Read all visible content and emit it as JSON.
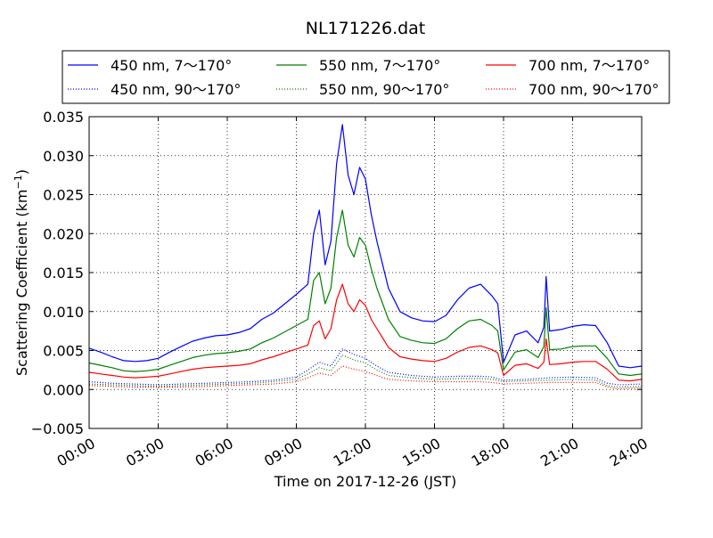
{
  "chart_data": {
    "type": "line",
    "title": "NL171226.dat",
    "xlabel": "Time on 2017-12-26 (JST)",
    "ylabel_main": "Scattering Coefficient (km",
    "ylabel_sup": "−1",
    "ylabel_close": ")",
    "x_unit": "hours",
    "xlim": [
      0,
      24
    ],
    "ylim": [
      -0.005,
      0.035
    ],
    "x_ticks": [
      {
        "value": 0,
        "label": "00:00"
      },
      {
        "value": 3,
        "label": "03:00"
      },
      {
        "value": 6,
        "label": "06:00"
      },
      {
        "value": 9,
        "label": "09:00"
      },
      {
        "value": 12,
        "label": "12:00"
      },
      {
        "value": 15,
        "label": "15:00"
      },
      {
        "value": 18,
        "label": "18:00"
      },
      {
        "value": 21,
        "label": "21:00"
      },
      {
        "value": 24,
        "label": "24:00"
      }
    ],
    "y_ticks": [
      {
        "value": -0.005,
        "label": "−0.005"
      },
      {
        "value": 0.0,
        "label": "0.000"
      },
      {
        "value": 0.005,
        "label": "0.005"
      },
      {
        "value": 0.01,
        "label": "0.010"
      },
      {
        "value": 0.015,
        "label": "0.015"
      },
      {
        "value": 0.02,
        "label": "0.020"
      },
      {
        "value": 0.025,
        "label": "0.025"
      },
      {
        "value": 0.03,
        "label": "0.030"
      },
      {
        "value": 0.035,
        "label": "0.035"
      }
    ],
    "grid": true,
    "legend_position": "top",
    "series": [
      {
        "name": "450 nm, 7～170°",
        "color": "#0000ff",
        "style": "solid",
        "x": [
          0,
          0.5,
          1,
          1.5,
          2,
          2.5,
          3,
          3.5,
          4,
          4.5,
          5,
          5.5,
          6,
          6.5,
          7,
          7.5,
          8,
          8.5,
          9,
          9.5,
          9.75,
          10,
          10.25,
          10.5,
          10.75,
          11,
          11.25,
          11.5,
          11.75,
          12,
          12.25,
          12.5,
          12.75,
          13,
          13.5,
          14,
          14.5,
          15,
          15.5,
          16,
          16.5,
          17,
          17.5,
          17.75,
          18,
          18.5,
          19,
          19.5,
          19.75,
          19.85,
          20,
          20.5,
          21,
          21.5,
          22,
          22.5,
          23,
          23.5,
          24
        ],
        "y": [
          0.0053,
          0.0048,
          0.0042,
          0.0037,
          0.0036,
          0.0037,
          0.004,
          0.0048,
          0.0055,
          0.0062,
          0.0066,
          0.0069,
          0.007,
          0.0073,
          0.0078,
          0.009,
          0.0098,
          0.011,
          0.0122,
          0.0135,
          0.02,
          0.023,
          0.016,
          0.019,
          0.029,
          0.034,
          0.0275,
          0.025,
          0.0285,
          0.027,
          0.0225,
          0.019,
          0.016,
          0.013,
          0.01,
          0.0092,
          0.0088,
          0.0087,
          0.0095,
          0.0115,
          0.013,
          0.0135,
          0.012,
          0.011,
          0.0035,
          0.007,
          0.0075,
          0.006,
          0.008,
          0.0145,
          0.0075,
          0.0077,
          0.0081,
          0.0083,
          0.0082,
          0.006,
          0.003,
          0.0028,
          0.003
        ]
      },
      {
        "name": "450 nm, 90～170°",
        "color": "#0000ff",
        "style": "dotted",
        "x": [
          0,
          1,
          2,
          3,
          4,
          5,
          6,
          7,
          8,
          9,
          9.5,
          10,
          10.5,
          11,
          11.5,
          12,
          12.5,
          13,
          14,
          15,
          16,
          17,
          17.5,
          18,
          19,
          20,
          21,
          22,
          22.5,
          23,
          24
        ],
        "y": [
          0.001,
          0.0008,
          0.0007,
          0.0006,
          0.0007,
          0.0008,
          0.0009,
          0.001,
          0.0012,
          0.0016,
          0.0025,
          0.0035,
          0.003,
          0.0052,
          0.0045,
          0.004,
          0.003,
          0.0022,
          0.0018,
          0.0016,
          0.0017,
          0.0017,
          0.0016,
          0.0012,
          0.0013,
          0.0015,
          0.0016,
          0.0015,
          0.0008,
          0.0006,
          0.0007
        ]
      },
      {
        "name": "550 nm, 7～170°",
        "color": "#008000",
        "style": "solid",
        "x": [
          0,
          0.5,
          1,
          1.5,
          2,
          2.5,
          3,
          3.5,
          4,
          4.5,
          5,
          5.5,
          6,
          6.5,
          7,
          7.5,
          8,
          8.5,
          9,
          9.5,
          9.75,
          10,
          10.25,
          10.5,
          10.75,
          11,
          11.25,
          11.5,
          11.75,
          12,
          12.25,
          12.5,
          12.75,
          13,
          13.5,
          14,
          14.5,
          15,
          15.5,
          16,
          16.5,
          17,
          17.5,
          17.75,
          18,
          18.5,
          19,
          19.5,
          19.75,
          19.85,
          20,
          20.5,
          21,
          21.5,
          22,
          22.5,
          23,
          23.5,
          24
        ],
        "y": [
          0.0034,
          0.0031,
          0.0028,
          0.0024,
          0.0023,
          0.0024,
          0.0026,
          0.0031,
          0.0036,
          0.0041,
          0.0044,
          0.0046,
          0.0047,
          0.0049,
          0.0052,
          0.006,
          0.0066,
          0.0074,
          0.0082,
          0.009,
          0.014,
          0.015,
          0.011,
          0.013,
          0.0195,
          0.023,
          0.0185,
          0.017,
          0.0195,
          0.0185,
          0.0155,
          0.013,
          0.011,
          0.009,
          0.0068,
          0.0063,
          0.006,
          0.0059,
          0.0065,
          0.0078,
          0.0088,
          0.009,
          0.0082,
          0.0075,
          0.0025,
          0.0048,
          0.0051,
          0.0041,
          0.0055,
          0.0105,
          0.0051,
          0.0052,
          0.0055,
          0.0056,
          0.0056,
          0.004,
          0.002,
          0.0018,
          0.002
        ]
      },
      {
        "name": "550 nm, 90～170°",
        "color": "#008000",
        "style": "dotted",
        "x": [
          0,
          1,
          2,
          3,
          4,
          5,
          6,
          7,
          8,
          9,
          9.5,
          10,
          10.5,
          11,
          11.5,
          12,
          12.5,
          13,
          14,
          15,
          16,
          17,
          17.5,
          18,
          19,
          20,
          21,
          22,
          22.5,
          23,
          24
        ],
        "y": [
          0.0007,
          0.0006,
          0.0005,
          0.0004,
          0.0005,
          0.0006,
          0.0007,
          0.0008,
          0.001,
          0.0013,
          0.002,
          0.0028,
          0.0024,
          0.0044,
          0.0038,
          0.0034,
          0.0025,
          0.0018,
          0.0015,
          0.0013,
          0.0014,
          0.0014,
          0.0013,
          0.001,
          0.0011,
          0.0012,
          0.0013,
          0.0012,
          0.0005,
          0.0003,
          0.0004
        ]
      },
      {
        "name": "700 nm, 7～170°",
        "color": "#ff0000",
        "style": "solid",
        "x": [
          0,
          0.5,
          1,
          1.5,
          2,
          2.5,
          3,
          3.5,
          4,
          4.5,
          5,
          5.5,
          6,
          6.5,
          7,
          7.5,
          8,
          8.5,
          9,
          9.5,
          9.75,
          10,
          10.25,
          10.5,
          10.75,
          11,
          11.25,
          11.5,
          11.75,
          12,
          12.25,
          12.5,
          12.75,
          13,
          13.5,
          14,
          14.5,
          15,
          15.5,
          16,
          16.5,
          17,
          17.5,
          17.75,
          18,
          18.5,
          19,
          19.5,
          19.75,
          19.85,
          20,
          20.5,
          21,
          21.5,
          22,
          22.5,
          23,
          23.5,
          24
        ],
        "y": [
          0.0022,
          0.002,
          0.0018,
          0.0016,
          0.0015,
          0.0016,
          0.0017,
          0.002,
          0.0023,
          0.0026,
          0.0028,
          0.0029,
          0.003,
          0.0031,
          0.0033,
          0.0038,
          0.0042,
          0.0047,
          0.0052,
          0.0057,
          0.0082,
          0.0088,
          0.0065,
          0.0078,
          0.0115,
          0.0135,
          0.011,
          0.01,
          0.0115,
          0.0108,
          0.009,
          0.0078,
          0.0066,
          0.0054,
          0.0042,
          0.0039,
          0.0037,
          0.0036,
          0.004,
          0.0048,
          0.0054,
          0.0056,
          0.0051,
          0.0047,
          0.0018,
          0.0031,
          0.0033,
          0.0027,
          0.0035,
          0.0065,
          0.0032,
          0.0033,
          0.0035,
          0.0036,
          0.0036,
          0.0026,
          0.0012,
          0.0011,
          0.0013
        ]
      },
      {
        "name": "700 nm, 90～170°",
        "color": "#ff0000",
        "style": "dotted",
        "x": [
          0,
          1,
          2,
          3,
          4,
          5,
          6,
          7,
          8,
          9,
          9.5,
          10,
          10.5,
          11,
          11.5,
          12,
          12.5,
          13,
          14,
          15,
          16,
          17,
          17.5,
          18,
          19,
          20,
          21,
          22,
          22.5,
          23,
          24
        ],
        "y": [
          0.0005,
          0.0004,
          0.0003,
          0.0003,
          0.0003,
          0.0004,
          0.0005,
          0.0006,
          0.0007,
          0.001,
          0.0015,
          0.0021,
          0.0018,
          0.003,
          0.0026,
          0.0023,
          0.0018,
          0.0013,
          0.0011,
          0.001,
          0.001,
          0.001,
          0.0009,
          0.0007,
          0.0008,
          0.0009,
          0.0009,
          0.0009,
          0.0003,
          0.0001,
          0.0002
        ]
      }
    ]
  }
}
